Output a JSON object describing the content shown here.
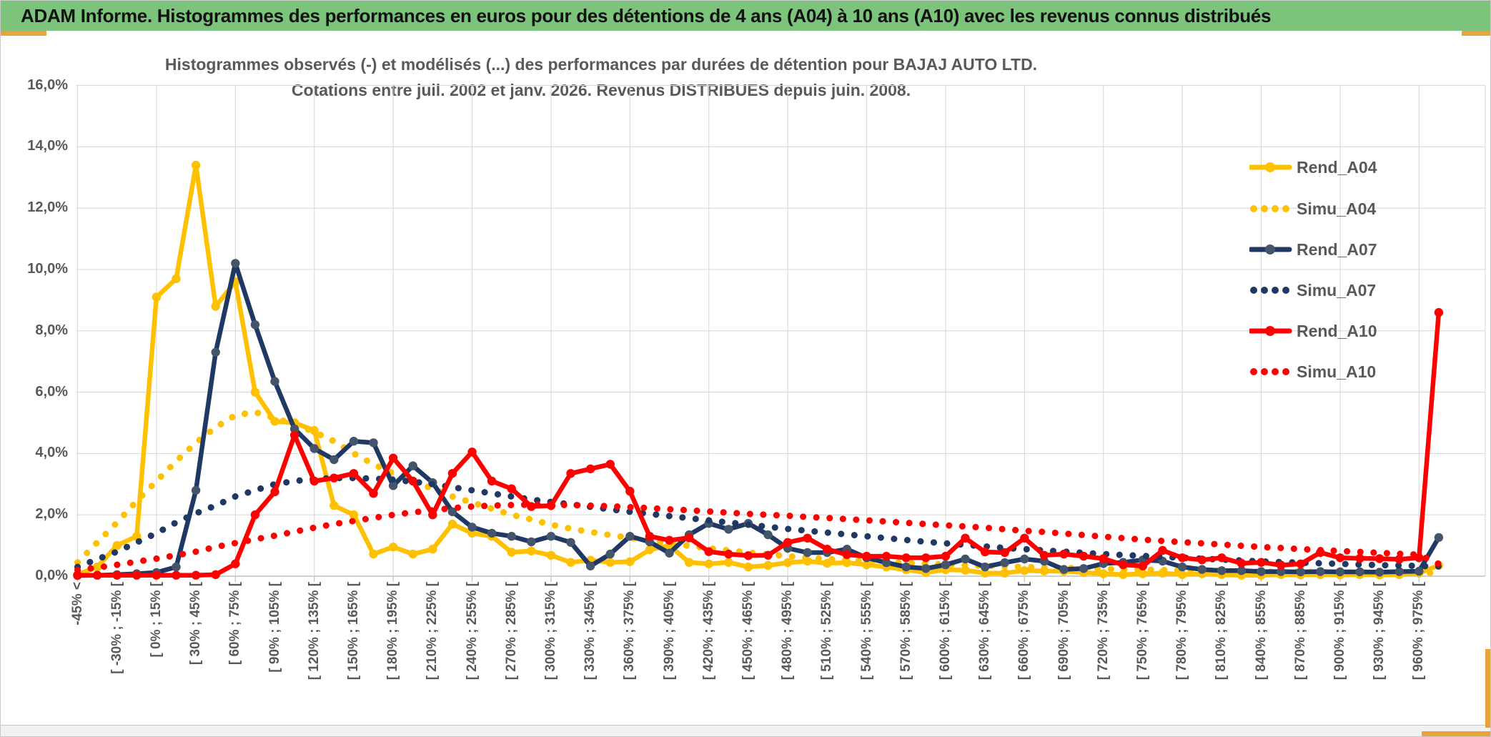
{
  "banner": {
    "title": "ADAM Informe. Histogrammes des performances en euros pour des détentions de 4 ans (A04) à 10 ans (A10) avec les revenus connus distribués"
  },
  "chart": {
    "title_line1": "Histogrammes observés (-) et modélisés (...) des performances par durées de détention pour BAJAJ AUTO LTD.",
    "title_line2": "Cotations entre juil. 2002 et janv. 2026. Revenus DISTRIBUES depuis juin. 2008."
  },
  "colors": {
    "banner_green": "#7cc47c",
    "accent_gold": "#e8a33b",
    "text_gray": "#595959",
    "grid": "#d9d9d9",
    "axis": "#bfbfbf",
    "gold_series": "#FFC000",
    "navy_series": "#1F3864",
    "navy_marker": "#44546A",
    "red_series": "#FF0000"
  },
  "chart_data": {
    "type": "line",
    "title": "Histogrammes observés (-) et modélisés (...) des performances par durées de détention pour BAJAJ AUTO LTD. Cotations entre juil. 2002 et janv. 2026. Revenus DISTRIBUES depuis juin. 2008.",
    "ylabel": "",
    "xlabel": "",
    "ylim": [
      0,
      16
    ],
    "y_unit": "percent",
    "ytick_step": 2,
    "y_tick_labels": [
      "16,0%",
      "14,0%",
      "12,0%",
      "10,0%",
      "8,0%",
      "6,0%",
      "4,0%",
      "2,0%",
      "0,0%"
    ],
    "grid": true,
    "legend_position": "right-middle",
    "x_tick_rotation": 90,
    "bin_width_pct": 15,
    "categories": [
      "-45% <",
      "",
      "[ -30% ; -15% [",
      "",
      "[ 0% ; 15% [",
      "",
      "[ 30% ; 45% [",
      "",
      "[ 60% ; 75% [",
      "",
      "[ 90% ; 105% [",
      "",
      "[ 120% ; 135% [",
      "",
      "[ 150% ; 165% [",
      "",
      "[ 180% ; 195% [",
      "",
      "[ 210% ; 225% [",
      "",
      "[ 240% ; 255% [",
      "",
      "[ 270% ; 285% [",
      "",
      "[ 300% ; 315% [",
      "",
      "[ 330% ; 345% [",
      "",
      "[ 360% ; 375% [",
      "",
      "[ 390% ; 405% [",
      "",
      "[ 420% ; 435% [",
      "",
      "[ 450% ; 465% [",
      "",
      "[ 480% ; 495% [",
      "",
      "[ 510% ; 525% [",
      "",
      "[ 540% ; 555% [",
      "",
      "[ 570% ; 585% [",
      "",
      "[ 600% ; 615% [",
      "",
      "[ 630% ; 645% [",
      "",
      "[ 660% ; 675% [",
      "",
      "[ 690% ; 705% [",
      "",
      "[ 720% ; 735% [",
      "",
      "[ 750% ; 765% [",
      "",
      "[ 780% ; 795% [",
      "",
      "[ 810% ; 825% [",
      "",
      "[ 840% ; 855% [",
      "",
      "[ 870% ; 885% [",
      "",
      "[ 900% ; 915% [",
      "",
      "[ 930% ; 945% [",
      "",
      "[ 960% ; 975% [",
      ""
    ],
    "series": [
      {
        "name": "Rend_A04",
        "style": "solid",
        "color": "#FFC000",
        "marker_color": "#FFC000",
        "values": [
          0.05,
          0.3,
          1.0,
          1.3,
          9.1,
          9.7,
          13.4,
          8.8,
          9.6,
          6.0,
          5.05,
          5.0,
          4.75,
          2.3,
          2.0,
          0.72,
          0.95,
          0.72,
          0.88,
          1.7,
          1.4,
          1.3,
          0.78,
          0.82,
          0.68,
          0.45,
          0.52,
          0.45,
          0.47,
          0.86,
          1.0,
          0.45,
          0.4,
          0.45,
          0.3,
          0.35,
          0.44,
          0.49,
          0.42,
          0.44,
          0.37,
          0.3,
          0.21,
          0.12,
          0.21,
          0.19,
          0.1,
          0.1,
          0.18,
          0.17,
          0.16,
          0.12,
          0.08,
          0.05,
          0.08,
          0.1,
          0.05,
          0.08,
          0.05,
          0.03,
          0.03,
          0.05,
          0.04,
          0.05,
          0.04,
          0.05,
          0.04,
          0.05,
          0.1,
          0.35
        ]
      },
      {
        "name": "Simu_A04",
        "style": "dotted",
        "color": "#FFC000",
        "marker_color": "#FFC000",
        "values": [
          0.45,
          1.1,
          1.75,
          2.45,
          3.1,
          3.75,
          4.35,
          4.85,
          5.25,
          5.35,
          5.15,
          4.95,
          4.7,
          4.4,
          4.0,
          3.65,
          3.35,
          3.1,
          2.85,
          2.6,
          2.4,
          2.2,
          2.0,
          1.85,
          1.68,
          1.55,
          1.44,
          1.34,
          1.25,
          1.16,
          1.07,
          0.99,
          0.91,
          0.84,
          0.77,
          0.71,
          0.65,
          0.6,
          0.56,
          0.52,
          0.49,
          0.46,
          0.43,
          0.4,
          0.38,
          0.36,
          0.34,
          0.32,
          0.3,
          0.28,
          0.27,
          0.25,
          0.24,
          0.22,
          0.21,
          0.2,
          0.19,
          0.18,
          0.17,
          0.16,
          0.15,
          0.14,
          0.14,
          0.13,
          0.12,
          0.12,
          0.11,
          0.11,
          0.1,
          0.1
        ]
      },
      {
        "name": "Rend_A07",
        "style": "solid",
        "color": "#1F3864",
        "marker_color": "#44546A",
        "values": [
          0.02,
          0.03,
          0.05,
          0.08,
          0.12,
          0.3,
          2.8,
          7.3,
          10.2,
          8.2,
          6.35,
          4.8,
          4.16,
          3.8,
          4.4,
          4.35,
          2.95,
          3.6,
          3.05,
          2.1,
          1.6,
          1.4,
          1.3,
          1.12,
          1.3,
          1.1,
          0.33,
          0.72,
          1.3,
          1.12,
          0.75,
          1.35,
          1.72,
          1.53,
          1.72,
          1.35,
          0.91,
          0.77,
          0.77,
          0.88,
          0.6,
          0.44,
          0.3,
          0.25,
          0.37,
          0.56,
          0.3,
          0.44,
          0.56,
          0.49,
          0.22,
          0.25,
          0.41,
          0.45,
          0.53,
          0.49,
          0.3,
          0.22,
          0.18,
          0.18,
          0.15,
          0.15,
          0.14,
          0.15,
          0.14,
          0.14,
          0.13,
          0.15,
          0.16,
          1.26
        ]
      },
      {
        "name": "Simu_A07",
        "style": "dotted",
        "color": "#1F3864",
        "marker_color": "#1F3864",
        "values": [
          0.3,
          0.55,
          0.8,
          1.1,
          1.4,
          1.75,
          2.05,
          2.3,
          2.6,
          2.8,
          3.0,
          3.1,
          3.17,
          3.2,
          3.2,
          3.18,
          3.15,
          3.08,
          3.0,
          2.9,
          2.8,
          2.7,
          2.6,
          2.5,
          2.42,
          2.34,
          2.26,
          2.18,
          2.1,
          2.03,
          1.96,
          1.89,
          1.82,
          1.75,
          1.68,
          1.61,
          1.54,
          1.48,
          1.42,
          1.36,
          1.3,
          1.24,
          1.18,
          1.12,
          1.07,
          1.02,
          0.97,
          0.92,
          0.88,
          0.84,
          0.8,
          0.76,
          0.72,
          0.69,
          0.66,
          0.63,
          0.6,
          0.57,
          0.54,
          0.51,
          0.48,
          0.46,
          0.44,
          0.42,
          0.4,
          0.38,
          0.36,
          0.35,
          0.33,
          0.32
        ]
      },
      {
        "name": "Rend_A10",
        "style": "solid",
        "color": "#FF0000",
        "marker_color": "#FF0000",
        "values": [
          0.03,
          0.03,
          0.03,
          0.03,
          0.03,
          0.03,
          0.03,
          0.05,
          0.4,
          2.0,
          2.75,
          4.6,
          3.1,
          3.2,
          3.35,
          2.7,
          3.85,
          3.1,
          2.0,
          3.35,
          4.05,
          3.1,
          2.85,
          2.27,
          2.3,
          3.35,
          3.5,
          3.65,
          2.77,
          1.3,
          1.17,
          1.25,
          0.8,
          0.72,
          0.67,
          0.68,
          1.1,
          1.24,
          0.88,
          0.7,
          0.65,
          0.65,
          0.6,
          0.6,
          0.65,
          1.24,
          0.79,
          0.77,
          1.24,
          0.68,
          0.72,
          0.65,
          0.57,
          0.37,
          0.33,
          0.84,
          0.6,
          0.53,
          0.6,
          0.42,
          0.45,
          0.36,
          0.4,
          0.77,
          0.6,
          0.58,
          0.57,
          0.55,
          0.6,
          8.6
        ]
      },
      {
        "name": "Simu_A10",
        "style": "dotted",
        "color": "#FF0000",
        "marker_color": "#FF0000",
        "values": [
          0.2,
          0.28,
          0.37,
          0.47,
          0.57,
          0.68,
          0.8,
          0.95,
          1.08,
          1.2,
          1.32,
          1.45,
          1.58,
          1.7,
          1.8,
          1.9,
          2.0,
          2.08,
          2.15,
          2.22,
          2.27,
          2.3,
          2.32,
          2.33,
          2.33,
          2.32,
          2.3,
          2.28,
          2.25,
          2.22,
          2.18,
          2.15,
          2.11,
          2.07,
          2.03,
          2.0,
          1.97,
          1.93,
          1.9,
          1.86,
          1.82,
          1.78,
          1.74,
          1.7,
          1.66,
          1.62,
          1.58,
          1.53,
          1.48,
          1.44,
          1.39,
          1.34,
          1.29,
          1.24,
          1.19,
          1.15,
          1.11,
          1.07,
          1.03,
          0.99,
          0.95,
          0.92,
          0.88,
          0.85,
          0.82,
          0.79,
          0.76,
          0.73,
          0.7,
          0.4
        ]
      }
    ]
  }
}
